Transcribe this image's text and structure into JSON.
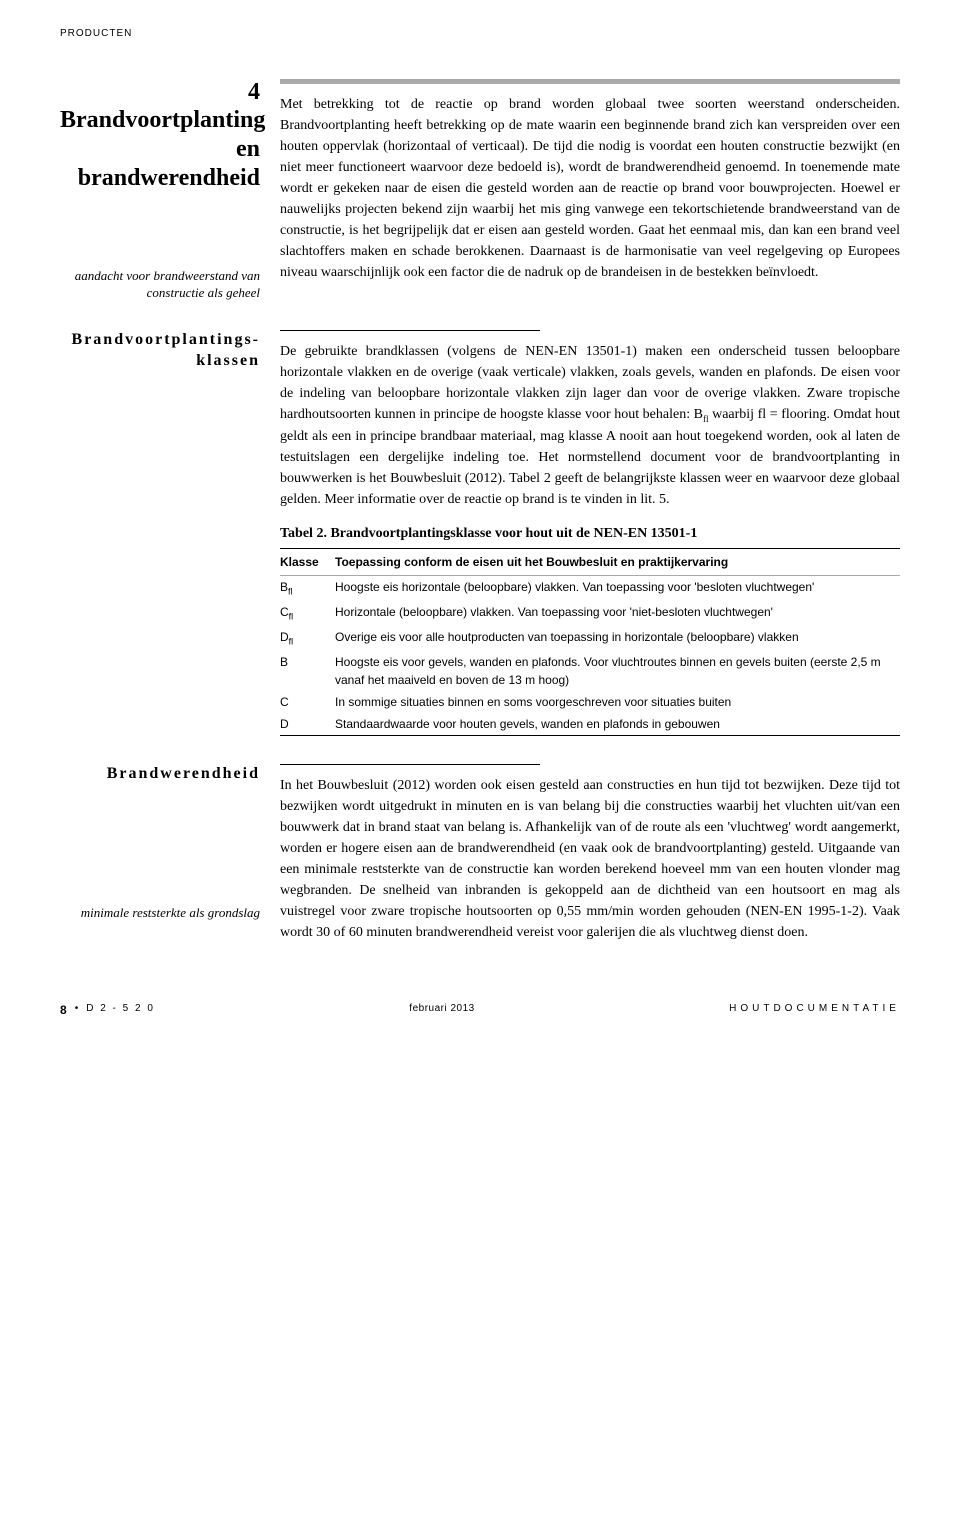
{
  "category": "PRODUCTEN",
  "chapter": {
    "number": "4",
    "title": "Brandvoortplanting en brandwerendheid"
  },
  "section1": {
    "marginNote": "aandacht voor brandweerstand van constructie als geheel",
    "body": "Met betrekking tot de reactie op brand worden globaal twee soorten weerstand onderscheiden. Brandvoortplanting heeft betrekking op de mate waarin een beginnende brand zich kan verspreiden over een houten oppervlak (horizontaal of verticaal). De tijd die nodig is voordat een houten constructie bezwijkt (en niet meer functioneert waarvoor deze bedoeld is), wordt de brandwerendheid genoemd. In toenemende mate wordt er gekeken naar de eisen die gesteld worden aan de reactie op brand voor bouwprojecten. Hoewel er nauwelijks projecten bekend zijn waarbij het mis ging vanwege een tekortschietende brandweerstand van de constructie, is het begrijpelijk dat er eisen aan gesteld worden. Gaat het eenmaal mis, dan kan een brand veel slachtoffers maken en schade berokkenen. Daarnaast is de harmonisatie van veel regelgeving op Europees niveau waarschijnlijk ook een factor die de nadruk op de brandeisen in de bestekken beïnvloedt."
  },
  "section2": {
    "title": "Brandvoortplantings-klassen",
    "bodyPart1": "De gebruikte brandklassen (volgens de NEN-EN 13501-1) maken een onderscheid tussen beloopbare horizontale vlakken en de overige (vaak verticale) vlakken, zoals gevels, wanden en plafonds. De eisen voor de indeling van beloopbare horizontale vlakken zijn lager dan voor de overige vlakken. Zware tropische hardhoutsoorten kunnen in principe de hoogste klasse voor hout behalen: B",
    "bodyPart2": " waarbij fl = flooring. Omdat hout geldt als een in principe brandbaar materiaal, mag klasse A nooit aan hout toegekend worden, ook al laten de testuitslagen een dergelijke indeling toe. Het normstellend document voor de brandvoortplanting in bouwwerken is het Bouwbesluit (2012). Tabel 2 geeft de belangrijkste klassen weer en waarvoor deze globaal gelden. Meer informatie over de reactie op brand is te vinden in lit. 5.",
    "tableCaption": "Tabel 2. Brandvoortplantingsklasse voor hout uit de NEN-EN 13501-1",
    "tableHeader": {
      "klasse": "Klasse",
      "desc": "Toepassing conform de eisen uit het Bouwbesluit en praktijkervaring"
    },
    "tableRows": [
      {
        "klasse": "B",
        "sub": "fl",
        "desc": "Hoogste eis horizontale (beloopbare) vlakken. Van toepassing voor 'besloten vluchtwegen'"
      },
      {
        "klasse": "C",
        "sub": "fl",
        "desc": "Horizontale (beloopbare) vlakken. Van toepassing voor 'niet-besloten vluchtwegen'"
      },
      {
        "klasse": "D",
        "sub": "fl",
        "desc": "Overige eis voor alle houtproducten van toepassing in horizontale (beloopbare) vlakken"
      },
      {
        "klasse": "B",
        "sub": "",
        "desc": "Hoogste eis voor gevels, wanden en plafonds. Voor vluchtroutes binnen en gevels buiten (eerste 2,5 m vanaf het maaiveld en boven de 13 m hoog)"
      },
      {
        "klasse": "C",
        "sub": "",
        "desc": "In sommige situaties binnen en soms voorgeschreven voor situaties buiten"
      },
      {
        "klasse": "D",
        "sub": "",
        "desc": "Standaardwaarde voor houten gevels, wanden en plafonds in gebouwen"
      }
    ]
  },
  "section3": {
    "title": "Brandwerendheid",
    "marginNote": "minimale reststerkte als grondslag",
    "body": "In het Bouwbesluit (2012) worden ook eisen gesteld aan constructies en hun tijd tot bezwijken. Deze tijd tot bezwijken wordt uitgedrukt in minuten en is van belang bij die constructies waarbij het vluchten uit/van een bouwwerk dat in brand staat van belang is. Afhankelijk van of de route als een 'vluchtweg' wordt aangemerkt, worden er hogere eisen aan de brandwerendheid (en vaak ook de brandvoortplanting) gesteld. Uitgaande van een minimale reststerkte van de constructie kan worden berekend hoeveel mm van een houten vlonder mag wegbranden. De snelheid van inbranden is gekoppeld aan de dichtheid van een houtsoort en mag als vuistregel voor zware tropische houtsoorten op 0,55 mm/min worden gehouden (NEN-EN 1995-1-2). Vaak wordt 30 of 60 minuten brandwerendheid vereist voor galerijen die als vluchtweg dienst doen."
  },
  "footer": {
    "pageNum": "8",
    "bullet": "•",
    "code": "D 2 - 5 2 0",
    "date": "februari 2013",
    "publication": "HOUTDOCUMENTATIE"
  }
}
